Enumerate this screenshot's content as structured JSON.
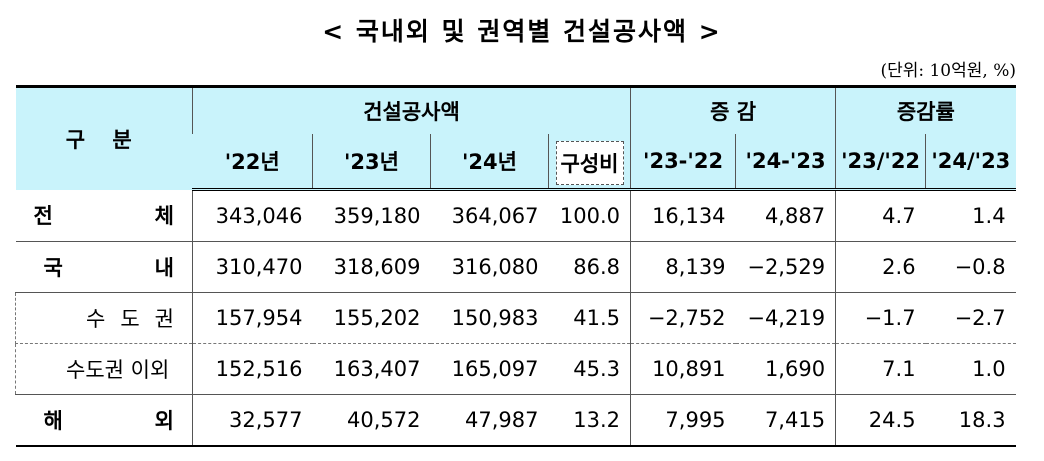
{
  "header": {
    "title": "< 국내외 및 권역별 건설공사액 >",
    "unit": "(단위: 10억원, %)"
  },
  "table": {
    "group_header": [
      "구 분",
      "건설공사액",
      "증 감",
      "증감률"
    ],
    "columns": [
      "'22년",
      "'23년",
      "'24년",
      "구성비",
      "'23-'22",
      "'24-'23",
      "'23/'22",
      "'24/'23"
    ],
    "rows": [
      [
        "전 체",
        "343,046",
        "359,180",
        "364,067",
        "100.0",
        "16,134",
        "4,887",
        "4.7",
        "1.4"
      ],
      [
        "국 내",
        "310,470",
        "318,609",
        "316,080",
        "86.8",
        "8,139",
        "−2,529",
        "2.6",
        "−0.8"
      ],
      [
        "수 도 권",
        "157,954",
        "155,202",
        "150,983",
        "41.5",
        "−2,752",
        "−4,219",
        "−1.7",
        "−2.7"
      ],
      [
        "수도권 이외",
        "152,516",
        "163,407",
        "165,097",
        "45.3",
        "10,891",
        "1,690",
        "7.1",
        "1.0"
      ],
      [
        "해 외",
        "32,577",
        "40,572",
        "47,987",
        "13.2",
        "7,995",
        "7,415",
        "24.5",
        "18.3"
      ]
    ]
  }
}
